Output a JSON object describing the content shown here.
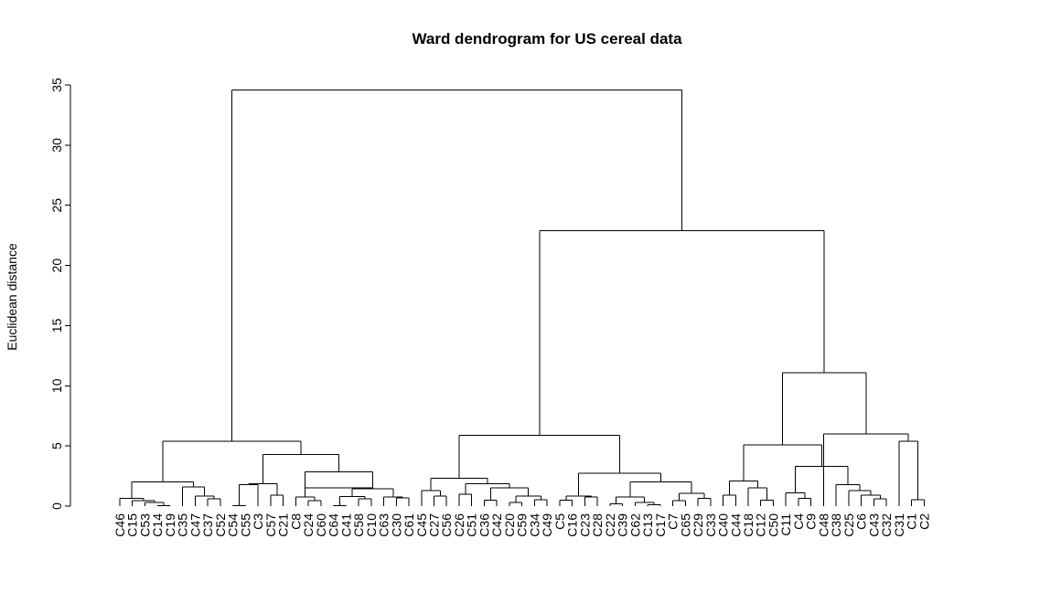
{
  "chart_data": {
    "type": "dendrogram",
    "title": "Ward dendrogram for US cereal data",
    "ylabel": "Euclidean distance",
    "xlabel": "",
    "ylim": [
      0,
      35
    ],
    "yticks": [
      "0",
      "5",
      "10",
      "15",
      "20",
      "25",
      "30",
      "35"
    ],
    "leaves": [
      "C46",
      "C15",
      "C53",
      "C14",
      "C19",
      "C35",
      "C47",
      "C37",
      "C52",
      "C54",
      "C55",
      "C3",
      "C57",
      "C21",
      "C8",
      "C24",
      "C60",
      "C64",
      "C41",
      "C58",
      "C10",
      "C63",
      "C30",
      "C61",
      "C45",
      "C27",
      "C56",
      "C26",
      "C51",
      "C36",
      "C42",
      "C20",
      "C59",
      "C34",
      "C49",
      "C5",
      "C16",
      "C23",
      "C28",
      "C22",
      "C39",
      "C62",
      "C13",
      "C17",
      "C7",
      "C65",
      "C29",
      "C33",
      "C40",
      "C44",
      "C18",
      "C12",
      "C50",
      "C11",
      "C4",
      "C9",
      "C48",
      "C38",
      "C25",
      "C6",
      "C43",
      "C32",
      "C31",
      "C1",
      "C2"
    ],
    "merges": [
      {
        "a": "C14",
        "b": "C19",
        "height": 0.05
      },
      {
        "a": "C53",
        "b": "C14+C19",
        "height": 0.3
      },
      {
        "a": "C15",
        "b": "C53+C14+C19",
        "height": 0.45
      },
      {
        "a": "C46",
        "b": "C15..C19",
        "height": 0.65
      },
      {
        "a": "C37",
        "b": "C52",
        "height": 0.6
      },
      {
        "a": "C47",
        "b": "C37+C52",
        "height": 0.85
      },
      {
        "a": "C35",
        "b": "C47+C37+C52",
        "height": 1.6
      },
      {
        "a": "C46..C19",
        "b": "C35..C52",
        "height": 2.0
      },
      {
        "a": "C54",
        "b": "C55",
        "height": 0.05
      },
      {
        "a": "C57",
        "b": "C21",
        "height": 0.9
      },
      {
        "a": "C54+C55",
        "b": "C3",
        "height": 1.8
      },
      {
        "a": "C54..C3",
        "b": "C57+C21",
        "height": 1.85
      },
      {
        "a": "C24",
        "b": "C60",
        "height": 0.45
      },
      {
        "a": "C8",
        "b": "C24+C60",
        "height": 0.75
      },
      {
        "a": "C64",
        "b": "C41",
        "height": 0.05
      },
      {
        "a": "C58",
        "b": "C10",
        "height": 0.6
      },
      {
        "a": "C64+C41",
        "b": "C58+C10",
        "height": 0.8
      },
      {
        "a": "C30",
        "b": "C61",
        "height": 0.7
      },
      {
        "a": "C63",
        "b": "C30+C61",
        "height": 0.75
      },
      {
        "a": "C64..C10",
        "b": "C63..C61",
        "height": 1.45
      },
      {
        "a": "C64..C61",
        "b": "C8..C60",
        "height": 1.5
      },
      {
        "a": "C8..C61",
        "b": "",
        "height": 2.85
      },
      {
        "a": "C54..C21",
        "b": "C8..C61",
        "height": 4.3
      },
      {
        "a": "C46..C52",
        "b": "C54..C61",
        "height": 5.4
      },
      {
        "a": "C27",
        "b": "C56",
        "height": 0.85
      },
      {
        "a": "C45",
        "b": "C27+C56",
        "height": 1.3
      },
      {
        "a": "C26",
        "b": "C51",
        "height": 1.0
      },
      {
        "a": "C36",
        "b": "C42",
        "height": 0.5
      },
      {
        "a": "C20",
        "b": "C59",
        "height": 0.3
      },
      {
        "a": "C34",
        "b": "C49",
        "height": 0.55
      },
      {
        "a": "C20+C59",
        "b": "C34+C49",
        "height": 0.85
      },
      {
        "a": "C20..C49",
        "b": "",
        "height": 1.15
      },
      {
        "a": "C36+C42",
        "b": "C20..C49",
        "height": 1.5
      },
      {
        "a": "C26+C51",
        "b": "C36..C49",
        "height": 1.85
      },
      {
        "a": "C45..C56",
        "b": "C26..C49",
        "height": 2.3
      },
      {
        "a": "C5",
        "b": "C16",
        "height": 0.5
      },
      {
        "a": "C23",
        "b": "C28",
        "height": 0.75
      },
      {
        "a": "C5+C16",
        "b": "C23+C28",
        "height": 0.85
      },
      {
        "a": "C22",
        "b": "C39",
        "height": 0.2
      },
      {
        "a": "C13",
        "b": "C17",
        "height": 0.1
      },
      {
        "a": "C62",
        "b": "C13+C17",
        "height": 0.3
      },
      {
        "a": "C22+C39",
        "b": "C62..C17",
        "height": 0.75
      },
      {
        "a": "C7",
        "b": "C65",
        "height": 0.45
      },
      {
        "a": "C29",
        "b": "C33",
        "height": 0.65
      },
      {
        "a": "C7+C65",
        "b": "C29+C33",
        "height": 1.05
      },
      {
        "a": "C22..C17",
        "b": "C7..C33",
        "height": 2.0
      },
      {
        "a": "C5..C28",
        "b": "C22..C33",
        "height": 2.75
      },
      {
        "a": "C45..C49",
        "b": "C5..C33",
        "height": 5.9
      },
      {
        "a": "C40",
        "b": "C44",
        "height": 0.9
      },
      {
        "a": "C12",
        "b": "C50",
        "height": 0.5
      },
      {
        "a": "C18",
        "b": "C12+C50",
        "height": 1.5
      },
      {
        "a": "C40+C44",
        "b": "C18..C50",
        "height": 2.1
      },
      {
        "a": "C4",
        "b": "C9",
        "height": 0.65
      },
      {
        "a": "C11",
        "b": "C4+C9",
        "height": 1.1
      },
      {
        "a": "C43",
        "b": "C32",
        "height": 0.6
      },
      {
        "a": "C6",
        "b": "C43+C32",
        "height": 0.9
      },
      {
        "a": "C25",
        "b": "C6..C32",
        "height": 1.3
      },
      {
        "a": "C38",
        "b": "C25..C32",
        "height": 1.8
      },
      {
        "a": "C11..C9",
        "b": "C38..C32",
        "height": 3.3
      },
      {
        "a": "C40..C50",
        "b": "C11..C32",
        "height": 5.1
      },
      {
        "a": "C1",
        "b": "C2",
        "height": 0.55
      },
      {
        "a": "C31",
        "b": "C1+C2",
        "height": 5.4
      },
      {
        "a": "C48",
        "b": "C31..C2",
        "height": 6.0
      },
      {
        "a": "C40..C32",
        "b": "C48..C2",
        "height": 11.1
      },
      {
        "a": "C45..C33",
        "b": "C40..C2",
        "height": 22.9
      },
      {
        "a": "C46..C61",
        "b": "C45..C2",
        "height": 34.6
      }
    ]
  }
}
